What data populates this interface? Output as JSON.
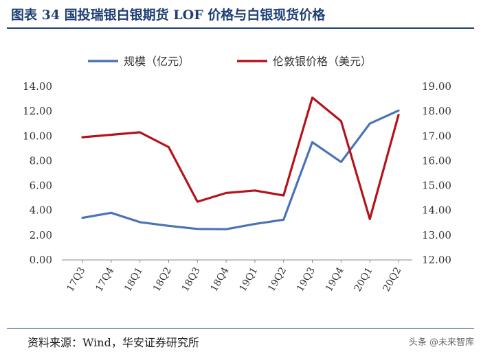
{
  "header": {
    "title": "图表 34 国投瑞银白银期货 LOF 价格与白银现货价格"
  },
  "footer": {
    "source": "资料来源：Wind，华安证券研究所",
    "watermark": "头条 @未来智库"
  },
  "colors": {
    "title": "#1f3f73",
    "series_scale": "#4a72b8",
    "series_price": "#b3141b"
  },
  "chart_data": {
    "type": "line",
    "title": "图表 34 国投瑞银白银期货 LOF 价格与白银现货价格",
    "categories": [
      "17Q3",
      "17Q4",
      "18Q1",
      "18Q2",
      "18Q3",
      "18Q4",
      "19Q1",
      "19Q2",
      "19Q3",
      "19Q4",
      "20Q1",
      "20Q2"
    ],
    "left_axis": {
      "ylim": [
        0,
        14
      ],
      "ticks": [
        "0.00",
        "2.00",
        "4.00",
        "6.00",
        "8.00",
        "10.00",
        "12.00",
        "14.00"
      ]
    },
    "right_axis": {
      "ylim": [
        12,
        19
      ],
      "ticks": [
        "12.00",
        "13.00",
        "14.00",
        "15.00",
        "16.00",
        "17.00",
        "18.00",
        "19.00"
      ]
    },
    "legend_position": "top",
    "grid": false,
    "series": [
      {
        "name": "规模（亿元）",
        "axis": "left",
        "color": "#4a72b8",
        "values": [
          3.4,
          3.8,
          3.05,
          2.75,
          2.5,
          2.48,
          2.9,
          3.25,
          9.5,
          7.9,
          11.0,
          12.05
        ]
      },
      {
        "name": "伦敦银价格（美元）",
        "axis": "right",
        "color": "#b3141b",
        "values": [
          16.95,
          17.05,
          17.15,
          16.55,
          14.35,
          14.7,
          14.8,
          14.6,
          18.55,
          17.6,
          13.65,
          17.85
        ]
      }
    ]
  }
}
